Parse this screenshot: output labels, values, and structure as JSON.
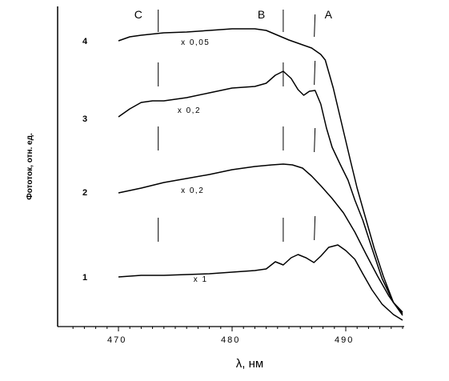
{
  "chart_data": {
    "type": "line",
    "title": "",
    "xlabel": "λ, нм",
    "ylabel": "Фототок, отн. ед.",
    "xlim": [
      465.5,
      495
    ],
    "x_ticks": [
      470,
      480,
      490
    ],
    "x_tick_labels": [
      "470",
      "480",
      "490"
    ],
    "y_ticks_shown": false,
    "grid": false,
    "markers": [
      {
        "label": "C",
        "x": 473.5
      },
      {
        "label": "B",
        "x": 484.5
      },
      {
        "label": "A",
        "x": 487.3
      }
    ],
    "series": [
      {
        "name": "1",
        "scale_label": "x 1",
        "points": [
          [
            470,
            346
          ],
          [
            472,
            344
          ],
          [
            474,
            344
          ],
          [
            476,
            343
          ],
          [
            478,
            342
          ],
          [
            480,
            340
          ],
          [
            482,
            338
          ],
          [
            483,
            336
          ],
          [
            483.8,
            327
          ],
          [
            484.5,
            331
          ],
          [
            485.2,
            322
          ],
          [
            485.8,
            318
          ],
          [
            486.5,
            322
          ],
          [
            487.2,
            328
          ],
          [
            487.8,
            320
          ],
          [
            488.5,
            309
          ],
          [
            489.3,
            306
          ],
          [
            490,
            313
          ],
          [
            490.8,
            324
          ],
          [
            491.5,
            342
          ],
          [
            492.3,
            362
          ],
          [
            493.2,
            380
          ],
          [
            494.2,
            393
          ],
          [
            495,
            400
          ]
        ]
      },
      {
        "name": "2",
        "scale_label": "x 0,2",
        "points": [
          [
            470,
            241
          ],
          [
            472,
            235
          ],
          [
            474,
            228
          ],
          [
            476,
            223
          ],
          [
            478,
            218
          ],
          [
            480,
            212
          ],
          [
            482,
            208
          ],
          [
            483.5,
            206
          ],
          [
            484.5,
            205
          ],
          [
            485.3,
            206
          ],
          [
            486.2,
            210
          ],
          [
            487,
            220
          ],
          [
            487.8,
            232
          ],
          [
            488.8,
            248
          ],
          [
            489.8,
            266
          ],
          [
            490.8,
            290
          ],
          [
            491.8,
            318
          ],
          [
            492.8,
            345
          ],
          [
            493.8,
            370
          ],
          [
            495,
            394
          ]
        ]
      },
      {
        "name": "3",
        "scale_label": "x 0,2",
        "points": [
          [
            470,
            146
          ],
          [
            471,
            136
          ],
          [
            472,
            128
          ],
          [
            473,
            126
          ],
          [
            474,
            126
          ],
          [
            475,
            124
          ],
          [
            476,
            122
          ],
          [
            478,
            116
          ],
          [
            480,
            110
          ],
          [
            482,
            108
          ],
          [
            483,
            104
          ],
          [
            483.8,
            94
          ],
          [
            484.5,
            89
          ],
          [
            485.2,
            98
          ],
          [
            485.8,
            112
          ],
          [
            486.3,
            119
          ],
          [
            486.8,
            114
          ],
          [
            487.3,
            113
          ],
          [
            487.8,
            130
          ],
          [
            488.3,
            160
          ],
          [
            488.8,
            184
          ],
          [
            489.5,
            205
          ],
          [
            490.2,
            225
          ],
          [
            490.8,
            250
          ],
          [
            491.5,
            275
          ],
          [
            492.3,
            310
          ],
          [
            493.2,
            348
          ],
          [
            494.2,
            378
          ],
          [
            495,
            390
          ]
        ]
      },
      {
        "name": "4",
        "scale_label": "x 0,05",
        "points": [
          [
            470,
            51
          ],
          [
            471,
            46
          ],
          [
            472,
            44
          ],
          [
            474,
            41
          ],
          [
            476,
            40
          ],
          [
            478,
            38
          ],
          [
            480,
            36
          ],
          [
            482,
            36
          ],
          [
            483,
            38
          ],
          [
            484,
            44
          ],
          [
            485,
            50
          ],
          [
            486,
            55
          ],
          [
            487,
            60
          ],
          [
            487.8,
            68
          ],
          [
            488.2,
            75
          ],
          [
            488.5,
            90
          ],
          [
            488.9,
            110
          ],
          [
            489.4,
            140
          ],
          [
            489.9,
            170
          ],
          [
            490.4,
            200
          ],
          [
            491,
            235
          ],
          [
            491.7,
            270
          ],
          [
            492.5,
            310
          ],
          [
            493.3,
            345
          ],
          [
            494.2,
            378
          ],
          [
            495,
            392
          ]
        ]
      }
    ]
  }
}
